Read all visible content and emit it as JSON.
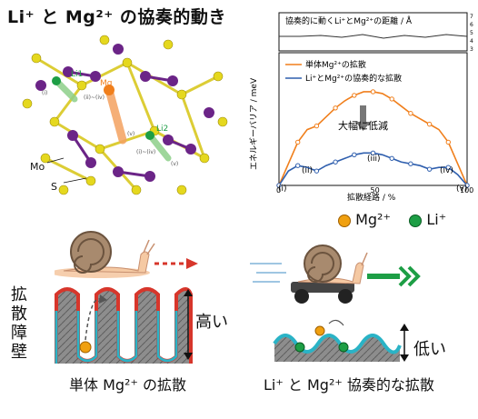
{
  "title": "Li⁺ と Mg²⁺ の協奏的動き",
  "structure": {
    "labels": {
      "mo": "Mo",
      "s": "S",
      "mg": "Mg",
      "li1": "Li1",
      "li2": "Li2"
    },
    "site_labels": {
      "i": "(i)",
      "ii_iv": "(ii)~(iv)",
      "v": "(v)",
      "i2": "(i)~(iv)",
      "v2": "(v)"
    }
  },
  "chart_data": {
    "type": "line",
    "top_panel": {
      "title": "協奏的に動くLi⁺とMg²⁺の距離 / Å",
      "yticks": [
        "7",
        "6",
        "5",
        "4",
        "3"
      ],
      "values": [
        4.5,
        4.5,
        4.6,
        4.4,
        4.7,
        4.3,
        4.6,
        4.4,
        4.7,
        4.5
      ]
    },
    "main_panel": {
      "ylabel": "エネルギーバリア / meV",
      "xlabel": "拡散経路 / %",
      "xticks": [
        "0",
        "50",
        "100"
      ],
      "xlim": [
        0,
        100
      ],
      "markers": [
        "(i)",
        "(ii)",
        "(iii)",
        "(iv)",
        "(v)"
      ],
      "annotation": "大幅に低減",
      "series": [
        {
          "name": "単体Mg²⁺の拡散",
          "color": "#f07f1c",
          "x": [
            0,
            5,
            10,
            15,
            20,
            25,
            30,
            35,
            40,
            45,
            50,
            55,
            60,
            65,
            70,
            75,
            80,
            85,
            90,
            95,
            100
          ],
          "y": [
            0,
            120,
            240,
            310,
            330,
            380,
            430,
            470,
            500,
            520,
            520,
            510,
            480,
            440,
            400,
            370,
            340,
            310,
            240,
            120,
            0
          ]
        },
        {
          "name": "Li⁺とMg²⁺の協奏的な拡散",
          "color": "#2f5fae",
          "x": [
            0,
            5,
            10,
            15,
            20,
            25,
            30,
            35,
            40,
            45,
            50,
            55,
            60,
            65,
            70,
            75,
            80,
            85,
            90,
            95,
            100
          ],
          "y": [
            0,
            80,
            110,
            100,
            80,
            110,
            130,
            150,
            170,
            180,
            180,
            170,
            150,
            130,
            120,
            110,
            90,
            100,
            100,
            60,
            0
          ]
        }
      ]
    }
  },
  "legend_ions": {
    "mg": "Mg²⁺",
    "li": "Li⁺"
  },
  "left_panel": {
    "barrier_label_chars": [
      "拡",
      "散",
      "障",
      "壁"
    ],
    "high": "高い",
    "caption": "単体 Mg²⁺ の拡散"
  },
  "right_panel": {
    "low": "低い",
    "caption": "Li⁺ と Mg²⁺ 協奏的な拡散"
  },
  "colors": {
    "orange": "#f07f1c",
    "blue": "#2f5fae",
    "mo": "#6b2487",
    "s": "#e5d81e",
    "li": "#1d9e45",
    "mg": "#f0a010",
    "teal": "#2ab3c6",
    "red": "#d7362b"
  }
}
